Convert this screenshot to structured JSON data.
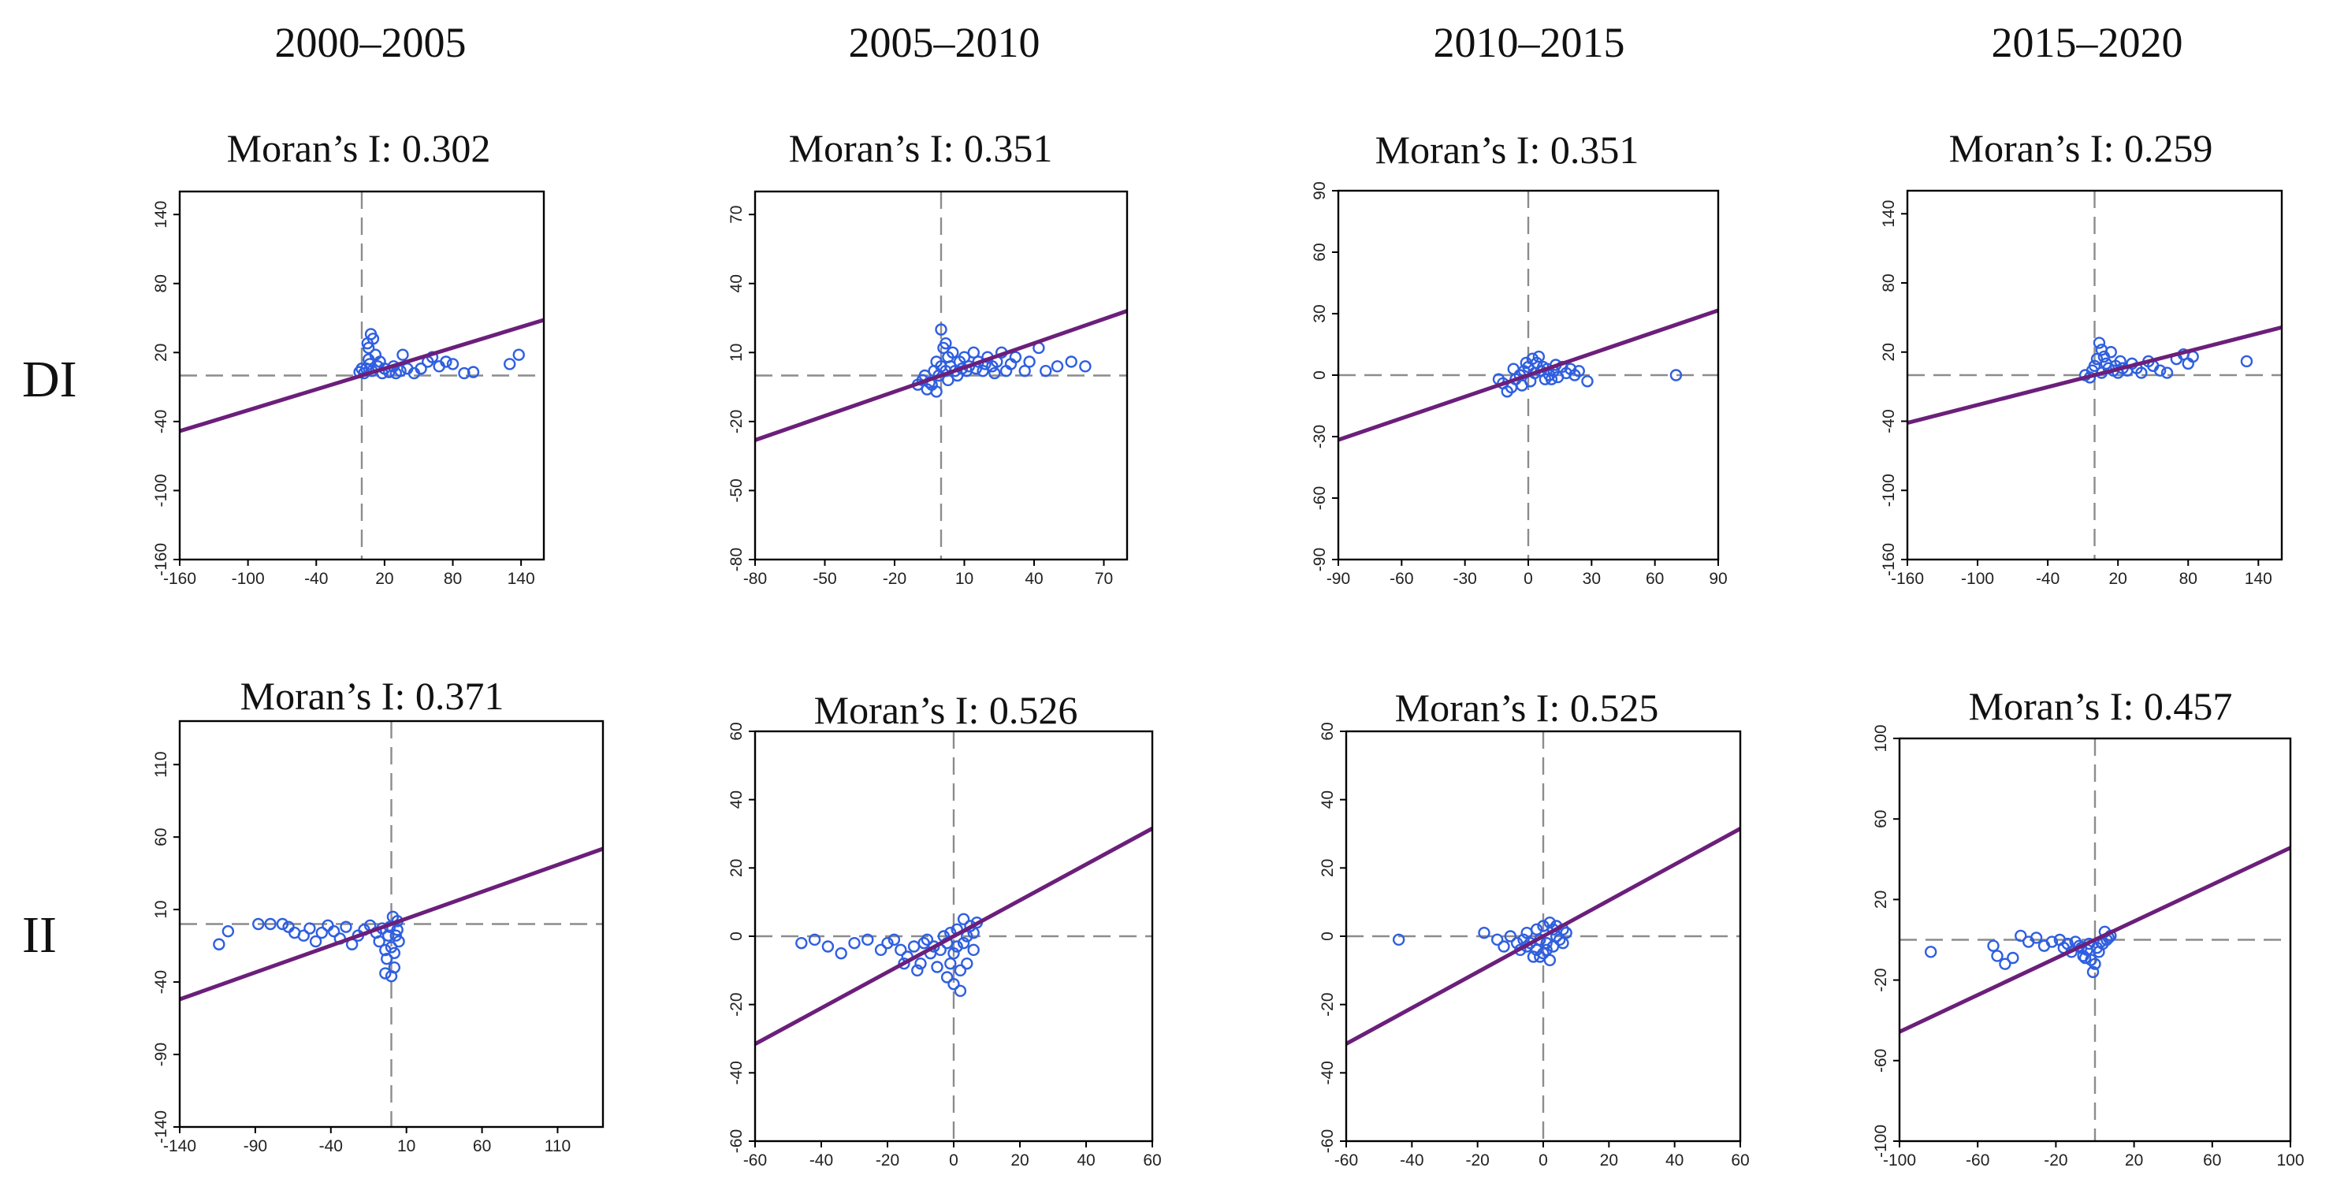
{
  "figure": {
    "colors": {
      "regression": "#6b1f7a",
      "points": "#2f5fe0",
      "reference": "#8c8c8c"
    },
    "point_icon": "circle-marker",
    "columns": [
      "2000–2005",
      "2005–2010",
      "2010–2015",
      "2015–2020"
    ],
    "rows": [
      "DI",
      "II"
    ],
    "moran_prefix": "Moran’s  I:"
  },
  "chart_data": [
    {
      "type": "scatter",
      "row": "DI",
      "period": "2000–2005",
      "moran_i": "0.302",
      "xlim": [
        -160,
        160
      ],
      "ylim": [
        -160,
        160
      ],
      "xticks": [
        -160,
        -100,
        -40,
        20,
        80,
        140
      ],
      "yticks": [
        -160,
        -100,
        -40,
        20,
        80,
        140
      ],
      "xref": 0,
      "yref": 0,
      "regression_slope": 0.302,
      "points": [
        [
          2,
          2
        ],
        [
          4,
          6
        ],
        [
          6,
          14
        ],
        [
          5,
          28
        ],
        [
          8,
          36
        ],
        [
          10,
          32
        ],
        [
          6,
          24
        ],
        [
          12,
          18
        ],
        [
          7,
          10
        ],
        [
          14,
          8
        ],
        [
          9,
          4
        ],
        [
          16,
          12
        ],
        [
          20,
          6
        ],
        [
          24,
          3
        ],
        [
          28,
          8
        ],
        [
          34,
          4
        ],
        [
          40,
          6
        ],
        [
          46,
          2
        ],
        [
          52,
          6
        ],
        [
          58,
          12
        ],
        [
          62,
          16
        ],
        [
          68,
          8
        ],
        [
          74,
          12
        ],
        [
          80,
          10
        ],
        [
          90,
          2
        ],
        [
          98,
          3
        ],
        [
          130,
          10
        ],
        [
          138,
          18
        ],
        [
          -2,
          3
        ],
        [
          0,
          6
        ],
        [
          18,
          2
        ],
        [
          30,
          2
        ],
        [
          36,
          18
        ]
      ]
    },
    {
      "type": "scatter",
      "row": "DI",
      "period": "2005–2010",
      "moran_i": "0.351",
      "xlim": [
        -80,
        80
      ],
      "ylim": [
        -80,
        80
      ],
      "xticks": [
        -80,
        -50,
        -20,
        10,
        40,
        70
      ],
      "yticks": [
        -80,
        -50,
        -20,
        10,
        40,
        70
      ],
      "xref": 0,
      "yref": 0,
      "regression_slope": 0.351,
      "points": [
        [
          -6,
          -6
        ],
        [
          -4,
          -4
        ],
        [
          -8,
          -2
        ],
        [
          -3,
          2
        ],
        [
          0,
          4
        ],
        [
          1,
          12
        ],
        [
          0,
          20
        ],
        [
          -2,
          6
        ],
        [
          -5,
          -3
        ],
        [
          2,
          14
        ],
        [
          3,
          8
        ],
        [
          4,
          4
        ],
        [
          5,
          10
        ],
        [
          6,
          2
        ],
        [
          8,
          6
        ],
        [
          10,
          8
        ],
        [
          12,
          4
        ],
        [
          14,
          10
        ],
        [
          16,
          6
        ],
        [
          18,
          2
        ],
        [
          20,
          8
        ],
        [
          22,
          4
        ],
        [
          24,
          6
        ],
        [
          26,
          10
        ],
        [
          28,
          2
        ],
        [
          30,
          5
        ],
        [
          32,
          8
        ],
        [
          36,
          2
        ],
        [
          42,
          12
        ],
        [
          50,
          4
        ],
        [
          56,
          6
        ],
        [
          62,
          4
        ],
        [
          -1,
          0
        ],
        [
          2,
          2
        ],
        [
          7,
          0
        ],
        [
          11,
          2
        ],
        [
          15,
          3
        ],
        [
          19,
          5
        ],
        [
          23,
          1
        ],
        [
          -10,
          -4
        ],
        [
          -7,
          0
        ],
        [
          -2,
          -7
        ],
        [
          3,
          -2
        ],
        [
          9,
          3
        ],
        [
          38,
          6
        ],
        [
          45,
          2
        ]
      ]
    },
    {
      "type": "scatter",
      "row": "DI",
      "period": "2010–2015",
      "moran_i": "0.351",
      "xlim": [
        -90,
        90
      ],
      "ylim": [
        -90,
        90
      ],
      "xticks": [
        -90,
        -60,
        -30,
        0,
        30,
        60,
        90
      ],
      "yticks": [
        -90,
        -60,
        -30,
        0,
        30,
        60,
        90
      ],
      "xref": 0,
      "yref": 0,
      "regression_slope": 0.351,
      "points": [
        [
          -10,
          -8
        ],
        [
          -12,
          -4
        ],
        [
          -8,
          -6
        ],
        [
          -6,
          -2
        ],
        [
          -4,
          0
        ],
        [
          -2,
          2
        ],
        [
          0,
          4
        ],
        [
          2,
          8
        ],
        [
          4,
          6
        ],
        [
          6,
          2
        ],
        [
          8,
          -2
        ],
        [
          10,
          0
        ],
        [
          12,
          2
        ],
        [
          14,
          -1
        ],
        [
          16,
          4
        ],
        [
          18,
          1
        ],
        [
          20,
          3
        ],
        [
          22,
          0
        ],
        [
          24,
          2
        ],
        [
          28,
          -3
        ],
        [
          -14,
          -2
        ],
        [
          -3,
          -5
        ],
        [
          1,
          -3
        ],
        [
          3,
          1
        ],
        [
          5,
          9
        ],
        [
          7,
          4
        ],
        [
          9,
          3
        ],
        [
          -1,
          6
        ],
        [
          70,
          0
        ],
        [
          11,
          -2
        ],
        [
          -7,
          3
        ],
        [
          13,
          5
        ]
      ]
    },
    {
      "type": "scatter",
      "row": "DI",
      "period": "2015–2020",
      "moran_i": "0.259",
      "xlim": [
        -160,
        160
      ],
      "ylim": [
        -160,
        160
      ],
      "xticks": [
        -160,
        -100,
        -40,
        20,
        80,
        140
      ],
      "yticks": [
        -160,
        -100,
        -40,
        20,
        80,
        140
      ],
      "xref": 0,
      "yref": 0,
      "regression_slope": 0.259,
      "points": [
        [
          -4,
          -2
        ],
        [
          -2,
          4
        ],
        [
          0,
          8
        ],
        [
          2,
          14
        ],
        [
          4,
          28
        ],
        [
          6,
          22
        ],
        [
          8,
          16
        ],
        [
          10,
          10
        ],
        [
          12,
          6
        ],
        [
          14,
          20
        ],
        [
          16,
          4
        ],
        [
          18,
          8
        ],
        [
          20,
          2
        ],
        [
          24,
          6
        ],
        [
          28,
          4
        ],
        [
          32,
          10
        ],
        [
          36,
          6
        ],
        [
          40,
          2
        ],
        [
          46,
          12
        ],
        [
          50,
          8
        ],
        [
          56,
          4
        ],
        [
          62,
          2
        ],
        [
          70,
          14
        ],
        [
          76,
          18
        ],
        [
          80,
          10
        ],
        [
          84,
          16
        ],
        [
          130,
          12
        ],
        [
          -8,
          0
        ],
        [
          6,
          2
        ],
        [
          22,
          12
        ]
      ]
    },
    {
      "type": "scatter",
      "row": "II",
      "period": "2000–2005",
      "moran_i": "0.371",
      "xlim": [
        -140,
        140
      ],
      "ylim": [
        -140,
        140
      ],
      "xticks": [
        -140,
        -90,
        -40,
        10,
        60,
        110
      ],
      "yticks": [
        -140,
        -90,
        -40,
        10,
        60,
        110
      ],
      "xref": 0,
      "yref": 0,
      "regression_slope": 0.371,
      "points": [
        [
          -114,
          -14
        ],
        [
          -108,
          -5
        ],
        [
          -88,
          0
        ],
        [
          -80,
          0
        ],
        [
          -72,
          0
        ],
        [
          -68,
          -2
        ],
        [
          -64,
          -6
        ],
        [
          -58,
          -8
        ],
        [
          -54,
          -3
        ],
        [
          -50,
          -12
        ],
        [
          -46,
          -6
        ],
        [
          -42,
          -1
        ],
        [
          -38,
          -5
        ],
        [
          -34,
          -10
        ],
        [
          -30,
          -2
        ],
        [
          -26,
          -14
        ],
        [
          -22,
          -8
        ],
        [
          -18,
          -4
        ],
        [
          -14,
          -1
        ],
        [
          -10,
          -6
        ],
        [
          -8,
          -12
        ],
        [
          -6,
          -3
        ],
        [
          -4,
          -18
        ],
        [
          -3,
          -24
        ],
        [
          -2,
          -8
        ],
        [
          0,
          -16
        ],
        [
          2,
          -30
        ],
        [
          -4,
          -34
        ],
        [
          0,
          -36
        ],
        [
          4,
          2
        ],
        [
          4,
          -4
        ],
        [
          5,
          -12
        ],
        [
          2,
          -20
        ],
        [
          1,
          5
        ],
        [
          -1,
          -2
        ],
        [
          3,
          -8
        ]
      ]
    },
    {
      "type": "scatter",
      "row": "II",
      "period": "2005–2010",
      "moran_i": "0.526",
      "xlim": [
        -60,
        60
      ],
      "ylim": [
        -60,
        60
      ],
      "xticks": [
        -60,
        -40,
        -20,
        0,
        20,
        40,
        60
      ],
      "yticks": [
        -60,
        -40,
        -20,
        0,
        20,
        40,
        60
      ],
      "xref": 0,
      "yref": 0,
      "regression_slope": 0.526,
      "points": [
        [
          -46,
          -2
        ],
        [
          -42,
          -1
        ],
        [
          -38,
          -3
        ],
        [
          -34,
          -5
        ],
        [
          -30,
          -2
        ],
        [
          -26,
          -1
        ],
        [
          -22,
          -4
        ],
        [
          -20,
          -2
        ],
        [
          -18,
          -1
        ],
        [
          -16,
          -4
        ],
        [
          -14,
          -6
        ],
        [
          -12,
          -3
        ],
        [
          -10,
          -8
        ],
        [
          -9,
          -2
        ],
        [
          -8,
          -1
        ],
        [
          -7,
          -5
        ],
        [
          -6,
          -3
        ],
        [
          -5,
          -9
        ],
        [
          -4,
          -4
        ],
        [
          -3,
          0
        ],
        [
          -2,
          -2
        ],
        [
          -1,
          -8
        ],
        [
          0,
          -5
        ],
        [
          1,
          -3
        ],
        [
          2,
          -10
        ],
        [
          3,
          -2
        ],
        [
          4,
          0
        ],
        [
          5,
          3
        ],
        [
          6,
          1
        ],
        [
          7,
          4
        ],
        [
          -2,
          -12
        ],
        [
          0,
          -14
        ],
        [
          2,
          -16
        ],
        [
          4,
          -8
        ],
        [
          6,
          -4
        ],
        [
          3,
          5
        ],
        [
          1,
          2
        ],
        [
          -1,
          1
        ],
        [
          -11,
          -10
        ],
        [
          -15,
          -8
        ]
      ]
    },
    {
      "type": "scatter",
      "row": "II",
      "period": "2010–2015",
      "moran_i": "0.525",
      "xlim": [
        -60,
        60
      ],
      "ylim": [
        -60,
        60
      ],
      "xticks": [
        -60,
        -40,
        -20,
        0,
        20,
        40,
        60
      ],
      "yticks": [
        -60,
        -40,
        -20,
        0,
        20,
        40,
        60
      ],
      "xref": 0,
      "yref": 0,
      "regression_slope": 0.525,
      "points": [
        [
          -44,
          -1
        ],
        [
          -18,
          1
        ],
        [
          -14,
          -1
        ],
        [
          -12,
          -3
        ],
        [
          -10,
          0
        ],
        [
          -8,
          -2
        ],
        [
          -7,
          -4
        ],
        [
          -6,
          -1
        ],
        [
          -5,
          -3
        ],
        [
          -4,
          -2
        ],
        [
          -3,
          -6
        ],
        [
          -2,
          -4
        ],
        [
          -1,
          -1
        ],
        [
          0,
          -5
        ],
        [
          1,
          -2
        ],
        [
          2,
          -7
        ],
        [
          3,
          -3
        ],
        [
          4,
          0
        ],
        [
          5,
          -1
        ],
        [
          6,
          2
        ],
        [
          -2,
          2
        ],
        [
          0,
          3
        ],
        [
          2,
          4
        ],
        [
          4,
          3
        ],
        [
          6,
          -2
        ],
        [
          -1,
          -6
        ],
        [
          1,
          -4
        ],
        [
          7,
          1
        ],
        [
          3,
          2
        ],
        [
          -5,
          1
        ]
      ]
    },
    {
      "type": "scatter",
      "row": "II",
      "period": "2015–2020",
      "moran_i": "0.457",
      "xlim": [
        -100,
        100
      ],
      "ylim": [
        -100,
        100
      ],
      "xticks": [
        -100,
        -60,
        -20,
        20,
        60,
        100
      ],
      "yticks": [
        -100,
        -60,
        -20,
        20,
        60,
        100
      ],
      "xref": 0,
      "yref": 0,
      "regression_slope": 0.457,
      "points": [
        [
          -84,
          -6
        ],
        [
          -52,
          -3
        ],
        [
          -50,
          -8
        ],
        [
          -46,
          -12
        ],
        [
          -42,
          -9
        ],
        [
          -38,
          2
        ],
        [
          -34,
          -1
        ],
        [
          -30,
          1
        ],
        [
          -26,
          -3
        ],
        [
          -22,
          -1
        ],
        [
          -18,
          0
        ],
        [
          -16,
          -4
        ],
        [
          -14,
          -2
        ],
        [
          -12,
          -6
        ],
        [
          -10,
          -1
        ],
        [
          -8,
          -3
        ],
        [
          -6,
          -8
        ],
        [
          -4,
          -5
        ],
        [
          -2,
          -10
        ],
        [
          0,
          -12
        ],
        [
          2,
          -6
        ],
        [
          4,
          -2
        ],
        [
          6,
          0
        ],
        [
          8,
          2
        ],
        [
          -1,
          -16
        ],
        [
          1,
          -4
        ],
        [
          3,
          -1
        ],
        [
          -3,
          -2
        ],
        [
          5,
          4
        ],
        [
          -5,
          -9
        ],
        [
          7,
          1
        ],
        [
          -7,
          -4
        ]
      ]
    }
  ]
}
